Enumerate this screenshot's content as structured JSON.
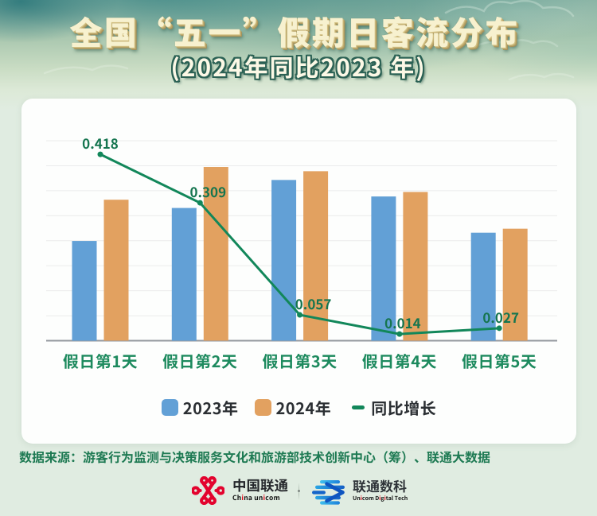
{
  "page": {
    "background": "#E0ECE1",
    "header_band_teal": "#5C9F9E",
    "card_background": "#FDFEFD"
  },
  "header": {
    "title": "全国“五一”假期日客流分布",
    "subtitle": "(2024年同比2023 年)",
    "title_color": "#F6EFC9",
    "subtitle_color": "#FCF8E6"
  },
  "chart_data": {
    "type": "bar+line",
    "title": "全国“五一”假期日客流分布（2024年同比2023年）",
    "categories": [
      "假日第1天",
      "假日第2天",
      "假日第3天",
      "假日第4天",
      "假日第5天"
    ],
    "series": [
      {
        "name": "2023年",
        "type": "bar",
        "color": "#62A0D6",
        "values": [
          3.99,
          5.31,
          6.43,
          5.77,
          4.32
        ]
      },
      {
        "name": "2024年",
        "type": "bar",
        "color": "#E2A160",
        "values": [
          5.64,
          6.95,
          6.78,
          5.95,
          4.48
        ]
      },
      {
        "name": "同比增长",
        "type": "line",
        "color": "#12875A",
        "values": [
          0.418,
          0.309,
          0.057,
          0.014,
          0.027
        ]
      }
    ],
    "data_labels": [
      "0.418",
      "0.309",
      "0.057",
      "0.014",
      "0.027"
    ],
    "data_label_color": "#15754F",
    "category_label_color": "#1D8A5E",
    "xlabel": "",
    "ylabel": "",
    "value_axis": {
      "unlabeled": true,
      "min": 0,
      "max": 8,
      "gridline_interval": 1,
      "note": "bar values estimated in gridline units; no tick labels shown"
    },
    "secondary_axis": {
      "unlabeled": true,
      "min": 0,
      "max": 0.539,
      "note": "line plotted on its own hidden scale"
    },
    "grid": true,
    "legend_position": "bottom"
  },
  "legend": {
    "items": [
      {
        "label": "2023年",
        "swatch": "#62A0D6",
        "marker": "square"
      },
      {
        "label": "2024年",
        "swatch": "#E2A160",
        "marker": "square"
      },
      {
        "label": "同比增长",
        "swatch": "#12875A",
        "marker": "line"
      }
    ]
  },
  "footer": {
    "source": "数据来源：游客行为监测与决策服务文化和旅游部技术创新中心（筹）、联通大数据"
  },
  "logos": {
    "unicom": {
      "cn": "中国联通",
      "en": "China unicom",
      "brand_red": "#E60012"
    },
    "digital": {
      "cn": "联通数科",
      "en": "Unicom Digital Tech",
      "brand_blue": "#1B7FD9"
    }
  }
}
